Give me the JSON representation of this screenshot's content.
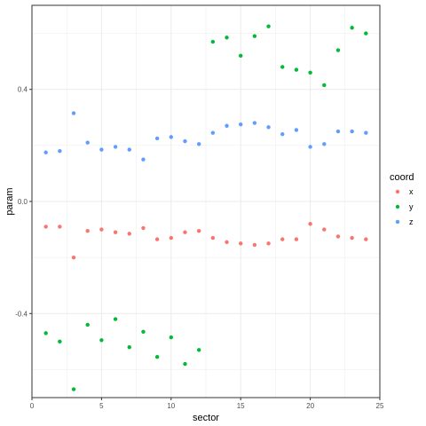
{
  "chart_data": {
    "type": "scatter",
    "xlabel": "sector",
    "ylabel": "param",
    "xlim": [
      0,
      25
    ],
    "ylim": [
      -0.7,
      0.7
    ],
    "x_ticks": [
      0,
      5,
      10,
      15,
      20,
      25
    ],
    "y_ticks": [
      -0.4,
      0.0,
      0.4
    ],
    "x_tick_labels": [
      "0",
      "5",
      "10",
      "15",
      "20",
      "25"
    ],
    "y_tick_labels": [
      "-0.4",
      "0.0",
      "0.4"
    ],
    "grid": true,
    "legend": {
      "title": "coord",
      "position": "right"
    },
    "x": [
      1,
      2,
      3,
      4,
      5,
      6,
      7,
      8,
      9,
      10,
      11,
      12,
      13,
      14,
      15,
      16,
      17,
      18,
      19,
      20,
      21,
      22,
      23,
      24
    ],
    "series": [
      {
        "name": "x",
        "color": "#F8766D",
        "values": [
          -0.09,
          -0.09,
          -0.2,
          -0.105,
          -0.1,
          -0.11,
          -0.115,
          -0.095,
          -0.135,
          -0.13,
          -0.11,
          -0.105,
          -0.13,
          -0.145,
          -0.15,
          -0.155,
          -0.15,
          -0.135,
          -0.135,
          -0.08,
          -0.1,
          -0.125,
          -0.13,
          -0.135
        ]
      },
      {
        "name": "y",
        "color": "#00BA38",
        "values": [
          -0.47,
          -0.5,
          -0.67,
          -0.44,
          -0.495,
          -0.42,
          -0.52,
          -0.465,
          -0.555,
          -0.485,
          -0.58,
          -0.53,
          0.57,
          0.585,
          0.52,
          0.59,
          0.625,
          0.48,
          0.47,
          0.46,
          0.415,
          0.54,
          0.62,
          0.6
        ]
      },
      {
        "name": "z",
        "color": "#619CFF",
        "values": [
          0.175,
          0.18,
          0.315,
          0.21,
          0.185,
          0.195,
          0.185,
          0.15,
          0.225,
          0.23,
          0.215,
          0.205,
          0.245,
          0.27,
          0.275,
          0.28,
          0.265,
          0.24,
          0.255,
          0.195,
          0.205,
          0.25,
          0.25,
          0.245
        ]
      }
    ]
  }
}
